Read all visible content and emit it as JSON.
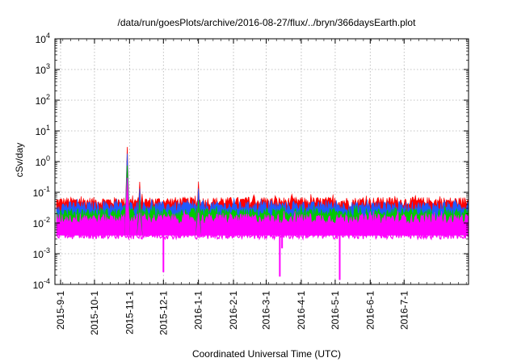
{
  "chart_data": {
    "type": "area",
    "title": "/data/run/goesPlots/archive/2016-08-27/flux/../bryn/366daysEarth.plot",
    "xlabel": "Coordinated Universal Time (UTC)",
    "ylabel": "cSv/day",
    "y_scale": "log",
    "ylim": [
      0.0001,
      10000
    ],
    "y_ticks": [
      {
        "base": "10",
        "exp": "-4"
      },
      {
        "base": "10",
        "exp": "-3"
      },
      {
        "base": "10",
        "exp": "-2"
      },
      {
        "base": "10",
        "exp": "-1"
      },
      {
        "base": "10",
        "exp": "0"
      },
      {
        "base": "10",
        "exp": "1"
      },
      {
        "base": "10",
        "exp": "2"
      },
      {
        "base": "10",
        "exp": "3"
      },
      {
        "base": "10",
        "exp": "4"
      }
    ],
    "x_range": [
      "2015-08-27",
      "2016-08-27"
    ],
    "x_ticks": [
      "2015-9-1",
      "2015-10-1",
      "2015-11-1",
      "2015-12-1",
      "2016-1-1",
      "2016-2-1",
      "2016-3-1",
      "2016-4-1",
      "2016-5-1",
      "2016-6-1",
      "2016-7-1"
    ],
    "grid": true,
    "legend": "none",
    "series": [
      {
        "color": "#ff0000",
        "baseline_max": 0.07
      },
      {
        "color": "#1e5aff",
        "baseline_max": 0.05
      },
      {
        "color": "#00c800",
        "baseline_max": 0.03
      },
      {
        "color": "#ff00ff",
        "baseline_max": 0.02,
        "baseline_min": 0.004
      }
    ],
    "spikes": [
      {
        "date": "2015-10-30",
        "value": 3.0
      },
      {
        "date": "2015-11-10",
        "value": 0.22
      },
      {
        "date": "2016-01-01",
        "value": 0.22
      }
    ],
    "dips": [
      {
        "date": "2015-12-01",
        "value": 0.00025
      },
      {
        "date": "2016-03-13",
        "value": 0.00018
      },
      {
        "date": "2016-03-15",
        "value": 0.0015
      },
      {
        "date": "2016-05-05",
        "value": 0.00014
      }
    ]
  }
}
